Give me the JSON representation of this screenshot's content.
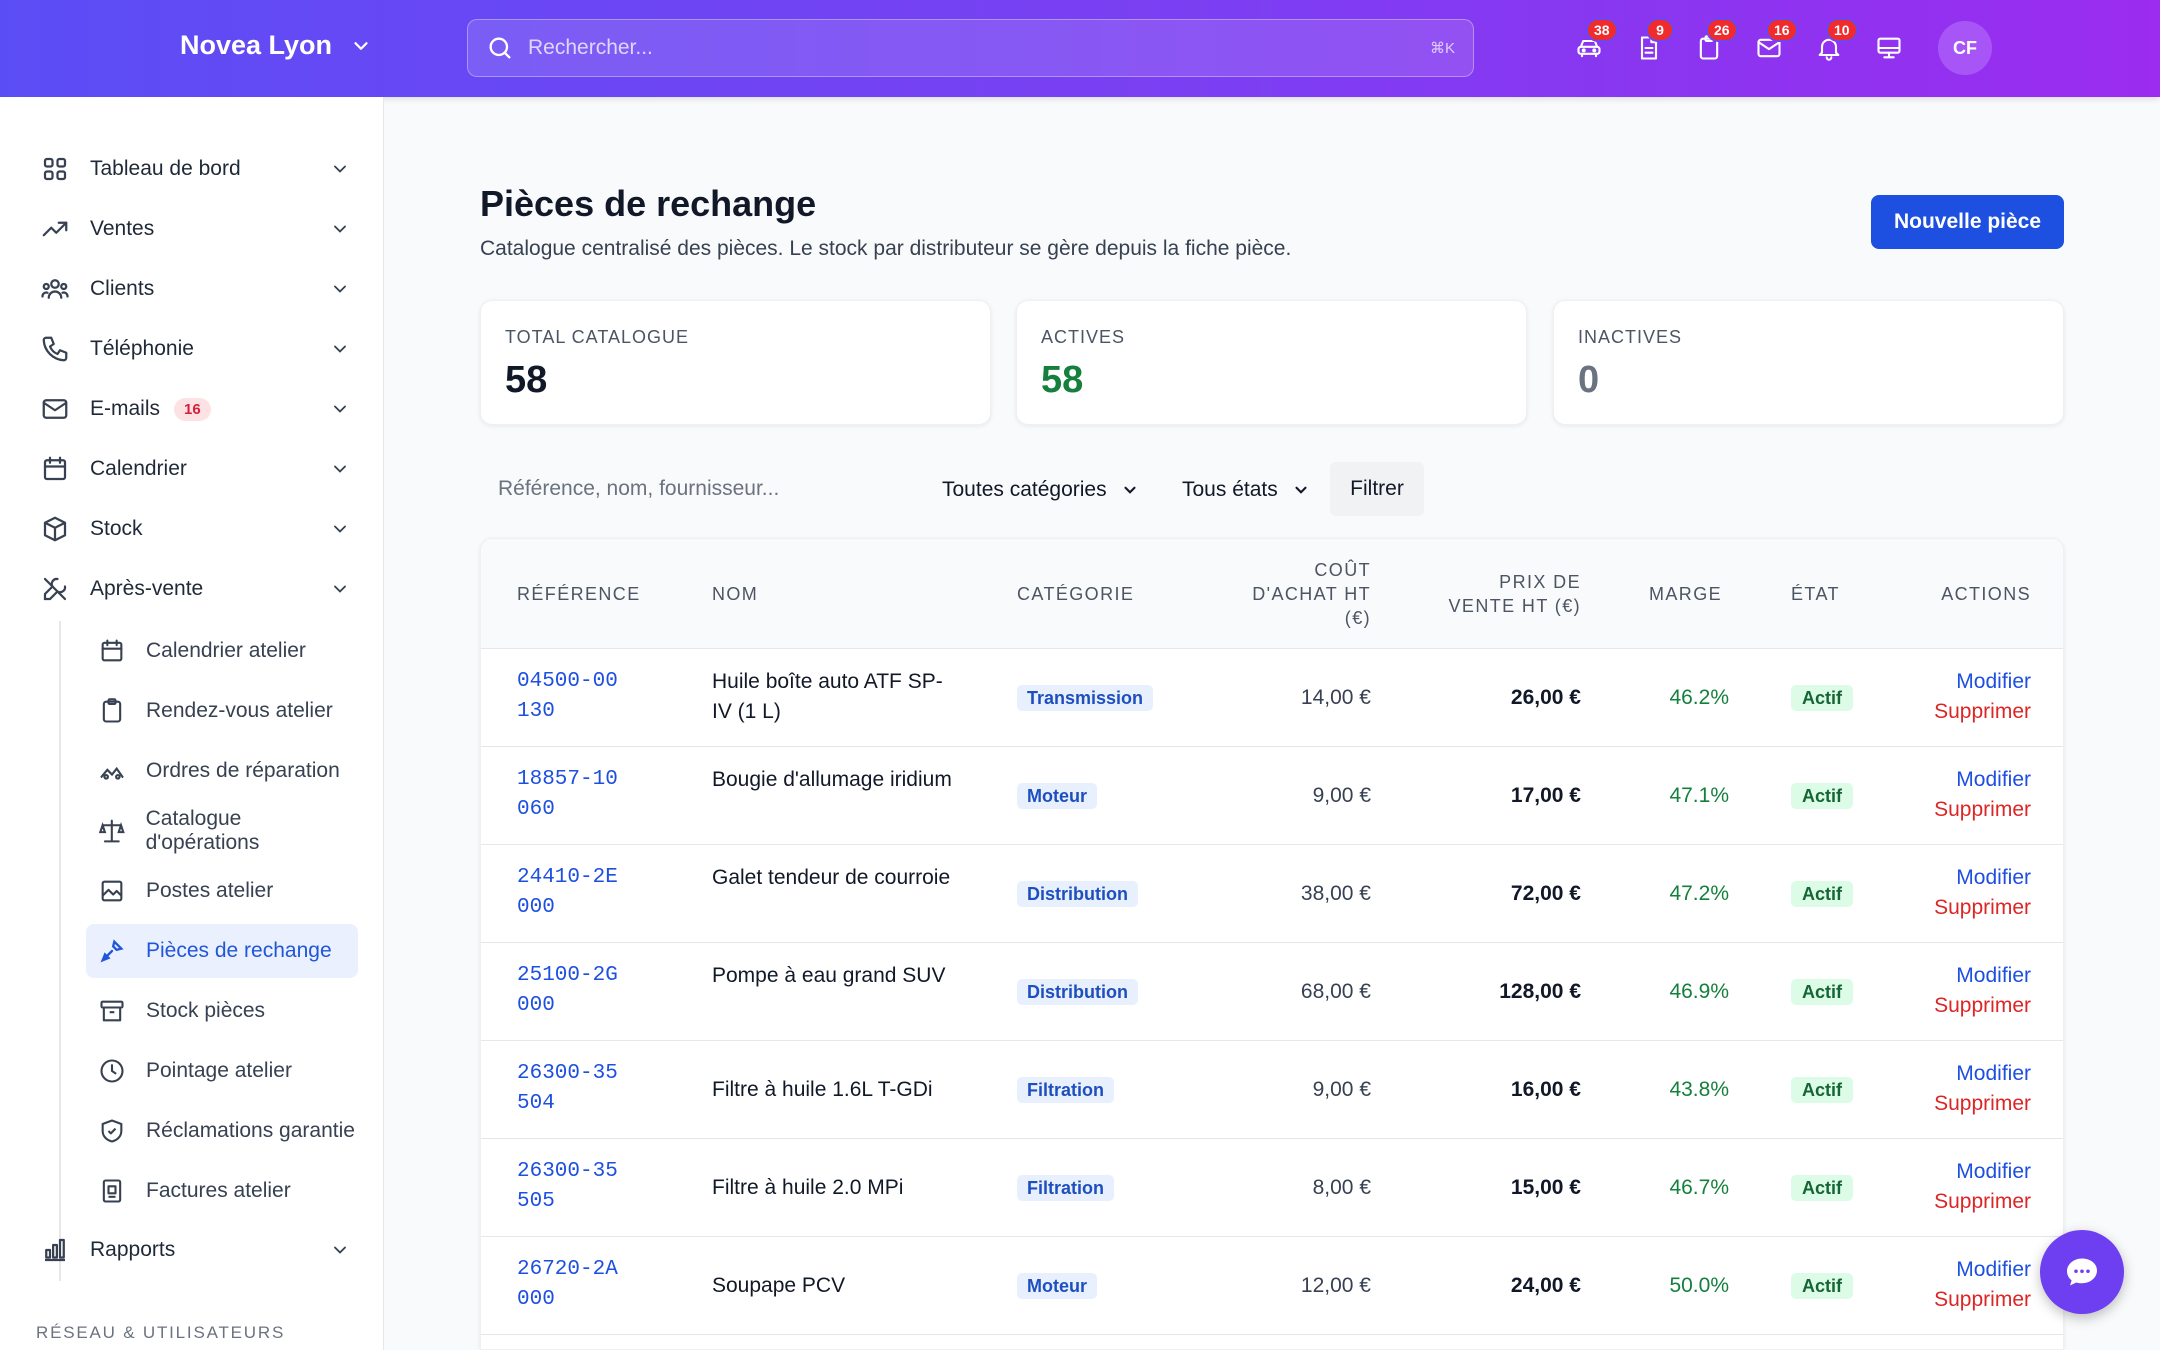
{
  "topbar": {
    "brand": "Novea Lyon",
    "search_placeholder": "Rechercher...",
    "search_shortcut": "⌘K",
    "icons": [
      {
        "name": "car-icon",
        "badge": "38"
      },
      {
        "name": "document-icon",
        "badge": "9"
      },
      {
        "name": "clipboard-icon",
        "badge": "26"
      },
      {
        "name": "mail-icon",
        "badge": "16"
      },
      {
        "name": "bell-icon",
        "badge": "10"
      },
      {
        "name": "monitor-icon",
        "badge": ""
      }
    ],
    "avatar": "CF"
  },
  "sidebar": {
    "items": [
      {
        "label": "Tableau de bord",
        "icon": "dashboard-icon"
      },
      {
        "label": "Ventes",
        "icon": "trending-up-icon"
      },
      {
        "label": "Clients",
        "icon": "users-icon"
      },
      {
        "label": "Téléphonie",
        "icon": "phone-icon"
      },
      {
        "label": "E-mails",
        "icon": "mail-icon",
        "badge": "16"
      },
      {
        "label": "Calendrier",
        "icon": "calendar-icon"
      },
      {
        "label": "Stock",
        "icon": "box-icon"
      },
      {
        "label": "Après-vente",
        "icon": "tools-icon"
      }
    ],
    "subitems": [
      {
        "label": "Calendrier atelier",
        "icon": "calendar-icon"
      },
      {
        "label": "Rendez-vous atelier",
        "icon": "clipboard-icon"
      },
      {
        "label": "Ordres de réparation",
        "icon": "wrench-icon"
      },
      {
        "label": "Catalogue d'opérations",
        "icon": "scale-icon"
      },
      {
        "label": "Postes atelier",
        "icon": "workstation-icon"
      },
      {
        "label": "Pièces de rechange",
        "icon": "part-icon",
        "active": true
      },
      {
        "label": "Stock pièces",
        "icon": "archive-icon"
      },
      {
        "label": "Pointage atelier",
        "icon": "clock-icon"
      },
      {
        "label": "Réclamations garantie",
        "icon": "shield-icon"
      },
      {
        "label": "Factures atelier",
        "icon": "invoice-icon"
      }
    ],
    "reports": {
      "label": "Rapports",
      "icon": "chart-icon"
    },
    "section_label": "RÉSEAU & UTILISATEURS"
  },
  "main": {
    "title": "Pièces de rechange",
    "subtitle": "Catalogue centralisé des pièces. Le stock par distributeur se gère depuis la fiche pièce.",
    "new_button": "Nouvelle pièce",
    "stats": [
      {
        "label": "TOTAL CATALOGUE",
        "value": "58",
        "color": "#111827"
      },
      {
        "label": "ACTIVES",
        "value": "58",
        "color": "#15803d"
      },
      {
        "label": "INACTIVES",
        "value": "0",
        "color": "#6b7280"
      }
    ],
    "filters": {
      "search_placeholder": "Référence, nom, fournisseur...",
      "category": "Toutes catégories",
      "state": "Tous états",
      "button": "Filtrer"
    },
    "table": {
      "headers": {
        "ref": "RÉFÉRENCE",
        "name": "NOM",
        "category": "CATÉGORIE",
        "cost": "COÛT D'ACHAT HT (€)",
        "price": "PRIX DE VENTE HT (€)",
        "margin": "MARGE",
        "state": "ÉTAT",
        "actions": "ACTIONS"
      },
      "rows": [
        {
          "ref": "04500-00130",
          "name": "Huile boîte auto ATF SP-IV (1 L)",
          "category": "Transmission",
          "cost": "14,00 €",
          "price": "26,00 €",
          "margin": "46.2%",
          "state": "Actif",
          "edit": "Modifier",
          "delete": "Supprimer"
        },
        {
          "ref": "18857-10060",
          "name": "Bougie d'allumage iridium",
          "category": "Moteur",
          "cost": "9,00 €",
          "price": "17,00 €",
          "margin": "47.1%",
          "state": "Actif",
          "edit": "Modifier",
          "delete": "Supprimer"
        },
        {
          "ref": "24410-2E000",
          "name": "Galet tendeur de courroie",
          "category": "Distribution",
          "cost": "38,00 €",
          "price": "72,00 €",
          "margin": "47.2%",
          "state": "Actif",
          "edit": "Modifier",
          "delete": "Supprimer"
        },
        {
          "ref": "25100-2G000",
          "name": "Pompe à eau grand SUV",
          "category": "Distribution",
          "cost": "68,00 €",
          "price": "128,00 €",
          "margin": "46.9%",
          "state": "Actif",
          "edit": "Modifier",
          "delete": "Supprimer"
        },
        {
          "ref": "26300-35504",
          "name": "Filtre à huile 1.6L T-GDi",
          "category": "Filtration",
          "cost": "9,00 €",
          "price": "16,00 €",
          "margin": "43.8%",
          "state": "Actif",
          "edit": "Modifier",
          "delete": "Supprimer"
        },
        {
          "ref": "26300-35505",
          "name": "Filtre à huile 2.0 MPi",
          "category": "Filtration",
          "cost": "8,00 €",
          "price": "15,00 €",
          "margin": "46.7%",
          "state": "Actif",
          "edit": "Modifier",
          "delete": "Supprimer"
        },
        {
          "ref": "26720-2A000",
          "name": "Soupape PCV",
          "category": "Moteur",
          "cost": "12,00 €",
          "price": "24,00 €",
          "margin": "50.0%",
          "state": "Actif",
          "edit": "Modifier",
          "delete": "Supprimer"
        }
      ]
    }
  },
  "chat_icon": "chat-icon"
}
